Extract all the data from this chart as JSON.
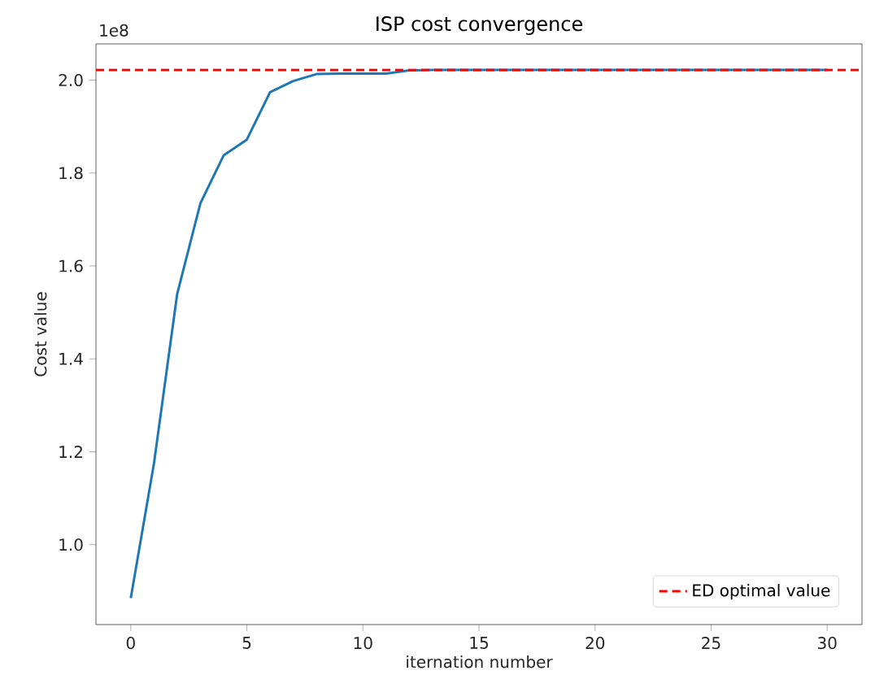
{
  "chart_data": {
    "type": "line",
    "title": "ISP cost convergence",
    "xlabel": "iternation number",
    "ylabel": "Cost value",
    "annotations": [
      "1e8"
    ],
    "x": [
      0,
      1,
      2,
      3,
      4,
      5,
      6,
      7,
      8,
      9,
      10,
      11,
      12,
      13,
      14,
      15,
      16,
      17,
      18,
      19,
      20,
      21,
      22,
      23,
      24,
      25,
      26,
      27,
      28,
      29,
      30
    ],
    "series": [
      {
        "color": "#1f77b4",
        "values": [
          0.885,
          1.175,
          1.54,
          1.735,
          1.838,
          1.872,
          1.974,
          1.998,
          2.013,
          2.014,
          2.014,
          2.014,
          2.021,
          2.022,
          2.022,
          2.022,
          2.022,
          2.022,
          2.022,
          2.022,
          2.022,
          2.022,
          2.022,
          2.022,
          2.022,
          2.022,
          2.022,
          2.022,
          2.022,
          2.022,
          2.022
        ]
      }
    ],
    "xlim": [
      -1.5,
      31.5
    ],
    "ylim": [
      0.828,
      2.078
    ],
    "xticks": [
      0,
      5,
      10,
      15,
      20,
      25,
      30
    ],
    "yticks": [
      {
        "value": 1,
        "label": "1.0"
      },
      1.2,
      1.4,
      1.6,
      1.8,
      {
        "value": 2,
        "label": "2.0"
      }
    ],
    "ref_lines": [
      {
        "axis": "y",
        "value": 2.022,
        "label": "ED optimal value",
        "color": "#ff0000",
        "line_style": "dashed"
      }
    ],
    "legend": "bottom right",
    "grid": false,
    "marker": "none",
    "line_style": "solid"
  }
}
